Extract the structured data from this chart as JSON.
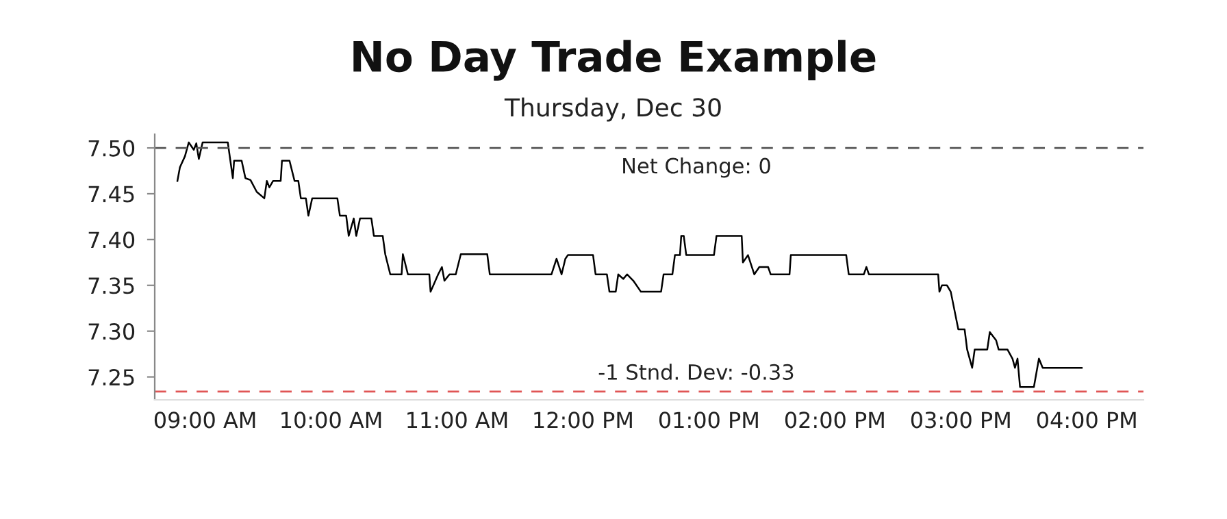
{
  "chart_data": {
    "type": "line",
    "title": "No Day Trade Example",
    "subtitle": "Thursday, Dec 30",
    "x": [
      8.78,
      8.8,
      8.84,
      8.87,
      8.91,
      8.93,
      8.95,
      8.98,
      9.0,
      9.18,
      9.22,
      9.23,
      9.29,
      9.32,
      9.36,
      9.41,
      9.47,
      9.49,
      9.51,
      9.54,
      9.6,
      9.61,
      9.67,
      9.71,
      9.74,
      9.76,
      9.8,
      9.82,
      9.85,
      10.05,
      10.07,
      10.12,
      10.14,
      10.18,
      10.2,
      10.23,
      10.32,
      10.34,
      10.41,
      10.43,
      10.47,
      10.56,
      10.57,
      10.61,
      10.78,
      10.79,
      10.85,
      10.88,
      10.9,
      10.94,
      10.99,
      11.03,
      11.24,
      11.26,
      11.75,
      11.79,
      11.83,
      11.86,
      11.88,
      12.08,
      12.1,
      12.19,
      12.21,
      12.26,
      12.28,
      12.32,
      12.35,
      12.4,
      12.46,
      12.62,
      12.64,
      12.71,
      12.73,
      12.77,
      12.78,
      12.8,
      12.82,
      13.04,
      13.06,
      13.26,
      13.27,
      13.31,
      13.36,
      13.4,
      13.47,
      13.49,
      13.64,
      13.65,
      14.09,
      14.11,
      14.23,
      14.25,
      14.27,
      14.82,
      14.83,
      14.85,
      14.89,
      14.92,
      14.98,
      15.03,
      15.05,
      15.09,
      15.11,
      15.21,
      15.23,
      15.28,
      15.3,
      15.37,
      15.41,
      15.43,
      15.45,
      15.47,
      15.58,
      15.62,
      15.65,
      15.96
    ],
    "series": [
      {
        "color": "#000000",
        "values": [
          7.464,
          7.479,
          7.491,
          7.506,
          7.498,
          7.505,
          7.488,
          7.506,
          7.506,
          7.506,
          7.467,
          7.486,
          7.486,
          7.467,
          7.465,
          7.452,
          7.445,
          7.464,
          7.457,
          7.464,
          7.464,
          7.486,
          7.486,
          7.464,
          7.464,
          7.445,
          7.445,
          7.426,
          7.445,
          7.445,
          7.426,
          7.426,
          7.404,
          7.423,
          7.404,
          7.423,
          7.423,
          7.404,
          7.404,
          7.384,
          7.362,
          7.362,
          7.384,
          7.362,
          7.362,
          7.343,
          7.362,
          7.37,
          7.355,
          7.362,
          7.362,
          7.384,
          7.384,
          7.362,
          7.362,
          7.379,
          7.362,
          7.379,
          7.383,
          7.383,
          7.362,
          7.362,
          7.343,
          7.343,
          7.362,
          7.357,
          7.362,
          7.355,
          7.343,
          7.343,
          7.362,
          7.362,
          7.383,
          7.383,
          7.404,
          7.404,
          7.383,
          7.383,
          7.404,
          7.404,
          7.375,
          7.383,
          7.362,
          7.37,
          7.37,
          7.362,
          7.362,
          7.383,
          7.383,
          7.362,
          7.362,
          7.37,
          7.362,
          7.362,
          7.343,
          7.35,
          7.35,
          7.343,
          7.302,
          7.302,
          7.28,
          7.26,
          7.28,
          7.28,
          7.299,
          7.29,
          7.28,
          7.28,
          7.27,
          7.26,
          7.27,
          7.239,
          7.239,
          7.27,
          7.26,
          7.26
        ]
      }
    ],
    "xlim": [
      8.6,
      16.45
    ],
    "xticks": [
      {
        "value": 9,
        "label": "09:00 AM"
      },
      {
        "value": 10,
        "label": "10:00 AM"
      },
      {
        "value": 11,
        "label": "11:00 AM"
      },
      {
        "value": 12,
        "label": "12:00 PM"
      },
      {
        "value": 13,
        "label": "01:00 PM"
      },
      {
        "value": 14,
        "label": "02:00 PM"
      },
      {
        "value": 15,
        "label": "03:00 PM"
      },
      {
        "value": 16,
        "label": "04:00 PM"
      }
    ],
    "ylim": [
      7.225,
      7.515
    ],
    "yticks": [
      {
        "value": 7.25,
        "label": "7.25"
      },
      {
        "value": 7.3,
        "label": "7.30"
      },
      {
        "value": 7.35,
        "label": "7.35"
      },
      {
        "value": 7.4,
        "label": "7.40"
      },
      {
        "value": 7.45,
        "label": "7.45"
      },
      {
        "value": 7.5,
        "label": "7.50"
      }
    ],
    "ref_lines": [
      {
        "axis": "y",
        "value": 7.5,
        "color": "#555555",
        "line_style": "dashed"
      },
      {
        "axis": "y",
        "value": 7.234,
        "color": "#e05555",
        "line_style": "dashed"
      }
    ],
    "annotations": [
      {
        "text": "Net Change: 0",
        "x": 12.9,
        "y": 7.5
      },
      {
        "text": "-1 Stnd. Dev: -0.33",
        "x": 12.9,
        "y": 7.234
      }
    ],
    "grid": false,
    "legend": false,
    "marker": "none",
    "line_style": "solid"
  }
}
